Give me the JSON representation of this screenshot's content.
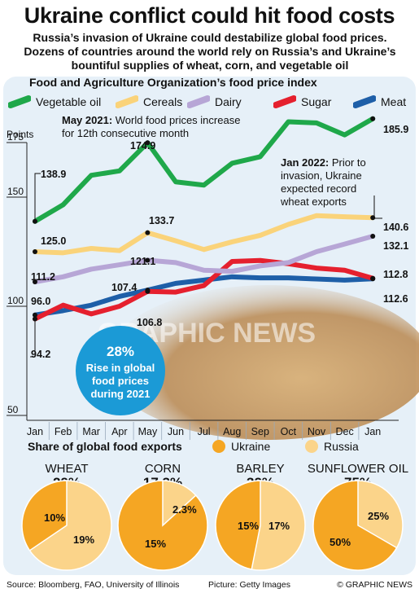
{
  "header": {
    "title": "Ukraine conflict could hit food costs",
    "subtitle": "Russia’s invasion of Ukraine could destabilize global food prices. Dozens of countries around the world rely on Russia’s and Ukraine’s bountiful supplies of wheat, corn, and vegetable oil"
  },
  "colors": {
    "vegetable_oil": "#1fa84a",
    "cereals": "#fad37a",
    "dairy": "#b7a6d6",
    "sugar": "#e5202e",
    "meat": "#1e5fa8",
    "ukraine": "#f5a623",
    "russia": "#fbd48a",
    "badge": "#1b9ad6",
    "panel": "#e6f0f8"
  },
  "chart_data": [
    {
      "type": "line",
      "title": "Food and Agriculture Organization’s food price index",
      "ylabel": "Points",
      "categories": [
        "Jan",
        "Feb",
        "Mar",
        "Apr",
        "May",
        "Jun",
        "Jul",
        "Aug",
        "Sep",
        "Oct",
        "Nov",
        "Dec",
        "Jan"
      ],
      "ylim": [
        50,
        185
      ],
      "yticks": [
        50,
        100,
        150,
        175
      ],
      "series": [
        {
          "name": "Vegetable oil",
          "key": "vegetable_oil",
          "values": [
            138.9,
            146.5,
            160.0,
            162.0,
            174.9,
            157.0,
            155.5,
            165.5,
            168.5,
            184.5,
            184.0,
            178.5,
            185.9
          ]
        },
        {
          "name": "Cereals",
          "key": "cereals",
          "values": [
            125.0,
            124.5,
            126.5,
            125.5,
            133.7,
            130.0,
            126.0,
            129.5,
            132.5,
            137.5,
            141.5,
            141.0,
            140.6
          ]
        },
        {
          "name": "Dairy",
          "key": "dairy",
          "values": [
            111.2,
            113.5,
            117.0,
            119.0,
            121.1,
            120.0,
            116.5,
            116.0,
            118.5,
            120.0,
            125.0,
            128.5,
            132.1
          ]
        },
        {
          "name": "Sugar",
          "key": "sugar",
          "values": [
            94.2,
            100.5,
            96.5,
            100.0,
            106.8,
            106.5,
            109.5,
            120.5,
            121.0,
            119.5,
            117.5,
            116.5,
            112.8
          ]
        },
        {
          "name": "Meat",
          "key": "meat",
          "values": [
            96.0,
            98.0,
            100.5,
            104.5,
            107.4,
            110.5,
            112.0,
            113.5,
            113.0,
            113.0,
            112.5,
            112.0,
            112.6
          ]
        }
      ],
      "value_labels": [
        {
          "series": "vegetable_oil",
          "index": 0,
          "text": "138.9"
        },
        {
          "series": "vegetable_oil",
          "index": 4,
          "text": "174.9"
        },
        {
          "series": "vegetable_oil",
          "index": 12,
          "text": "185.9"
        },
        {
          "series": "cereals",
          "index": 0,
          "text": "125.0"
        },
        {
          "series": "cereals",
          "index": 4,
          "text": "133.7"
        },
        {
          "series": "cereals",
          "index": 12,
          "text": "140.6"
        },
        {
          "series": "dairy",
          "index": 0,
          "text": "111.2"
        },
        {
          "series": "dairy",
          "index": 4,
          "text": "121.1"
        },
        {
          "series": "dairy",
          "index": 12,
          "text": "132.1"
        },
        {
          "series": "sugar",
          "index": 0,
          "text": "94.2"
        },
        {
          "series": "sugar",
          "index": 4,
          "text": "106.8"
        },
        {
          "series": "sugar",
          "index": 12,
          "text": "112.8"
        },
        {
          "series": "meat",
          "index": 0,
          "text": "96.0"
        },
        {
          "series": "meat",
          "index": 4,
          "text": "107.4"
        },
        {
          "series": "meat",
          "index": 12,
          "text": "112.6"
        }
      ],
      "annotations": [
        {
          "bold": "May 2021:",
          "text": " World food prices increase",
          "line2": "for 12th consecutive month"
        },
        {
          "bold": "Jan 2022:",
          "text": " Prior to",
          "line2": "invasion, Ukraine",
          "line3": "expected record",
          "line4": "wheat exports"
        }
      ],
      "badge": {
        "value": "28%",
        "line1": "Rise in global",
        "line2": "food prices",
        "line3": "during 2021"
      }
    },
    {
      "type": "pie",
      "title": "Share of global food exports",
      "legend": [
        "Ukraine",
        "Russia"
      ],
      "charts": [
        {
          "name": "WHEAT",
          "total": "29%",
          "ukraine": 10,
          "russia": 19,
          "ukraine_label": "10%",
          "russia_label": "19%"
        },
        {
          "name": "CORN",
          "total": "17.3%",
          "ukraine": 15,
          "russia": 2.3,
          "ukraine_label": "15%",
          "russia_label": "2.3%"
        },
        {
          "name": "BARLEY",
          "total": "32%",
          "ukraine": 15,
          "russia": 17,
          "ukraine_label": "15%",
          "russia_label": "17%"
        },
        {
          "name": "SUNFLOWER OIL",
          "total": "75%",
          "ukraine": 50,
          "russia": 25,
          "ukraine_label": "50%",
          "russia_label": "25%"
        }
      ]
    }
  ],
  "watermark": "GRAPHIC NEWS",
  "footer": {
    "source": "Source: Bloomberg, FAO, University of Illinois",
    "picture": "Picture: Getty Images",
    "copyright": "© GRAPHIC NEWS"
  }
}
